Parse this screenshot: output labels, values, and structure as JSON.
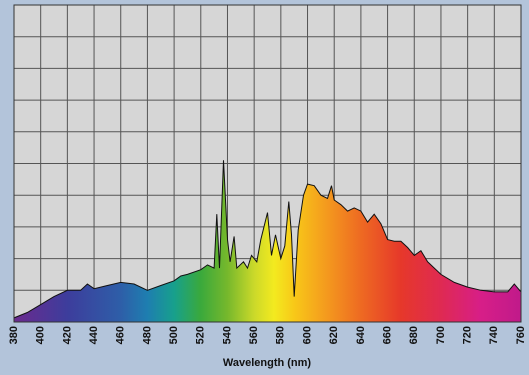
{
  "chart_data": {
    "type": "area",
    "x_label": "Wavelength (nm)",
    "x": [
      380,
      390,
      400,
      410,
      420,
      430,
      435,
      440,
      450,
      460,
      470,
      480,
      490,
      500,
      505,
      510,
      520,
      525,
      530,
      532,
      534,
      537,
      540,
      542,
      545,
      547,
      552,
      555,
      558,
      562,
      565,
      570,
      573,
      576,
      580,
      583,
      586,
      588,
      590,
      593,
      597,
      600,
      605,
      610,
      615,
      618,
      620,
      625,
      630,
      635,
      640,
      645,
      650,
      655,
      660,
      665,
      670,
      675,
      680,
      685,
      690,
      695,
      700,
      710,
      720,
      730,
      740,
      750,
      755,
      760
    ],
    "values": [
      0.13,
      0.3,
      0.55,
      0.8,
      1.0,
      1.0,
      1.2,
      1.05,
      1.15,
      1.25,
      1.2,
      1.0,
      1.15,
      1.3,
      1.45,
      1.5,
      1.65,
      1.8,
      1.7,
      3.4,
      1.7,
      5.1,
      2.6,
      1.9,
      2.7,
      1.7,
      1.9,
      1.7,
      2.1,
      1.9,
      2.6,
      3.45,
      2.1,
      2.75,
      2.0,
      2.4,
      3.8,
      2.75,
      0.8,
      2.9,
      4.0,
      4.35,
      4.3,
      4.0,
      3.9,
      4.3,
      3.85,
      3.7,
      3.5,
      3.6,
      3.5,
      3.15,
      3.4,
      3.1,
      2.6,
      2.55,
      2.55,
      2.35,
      2.1,
      2.25,
      1.9,
      1.7,
      1.5,
      1.25,
      1.1,
      1.0,
      0.95,
      0.95,
      1.2,
      0.95
    ],
    "xlim": [
      380,
      760
    ],
    "xticks": [
      380,
      400,
      420,
      440,
      460,
      480,
      500,
      520,
      540,
      560,
      580,
      600,
      620,
      640,
      660,
      680,
      700,
      720,
      740,
      760
    ],
    "ylim": [
      0,
      10
    ],
    "yticks": [
      0,
      1,
      2,
      3,
      4,
      5,
      6,
      7,
      8,
      9,
      10
    ],
    "grid": true,
    "line_color": "#111111"
  }
}
